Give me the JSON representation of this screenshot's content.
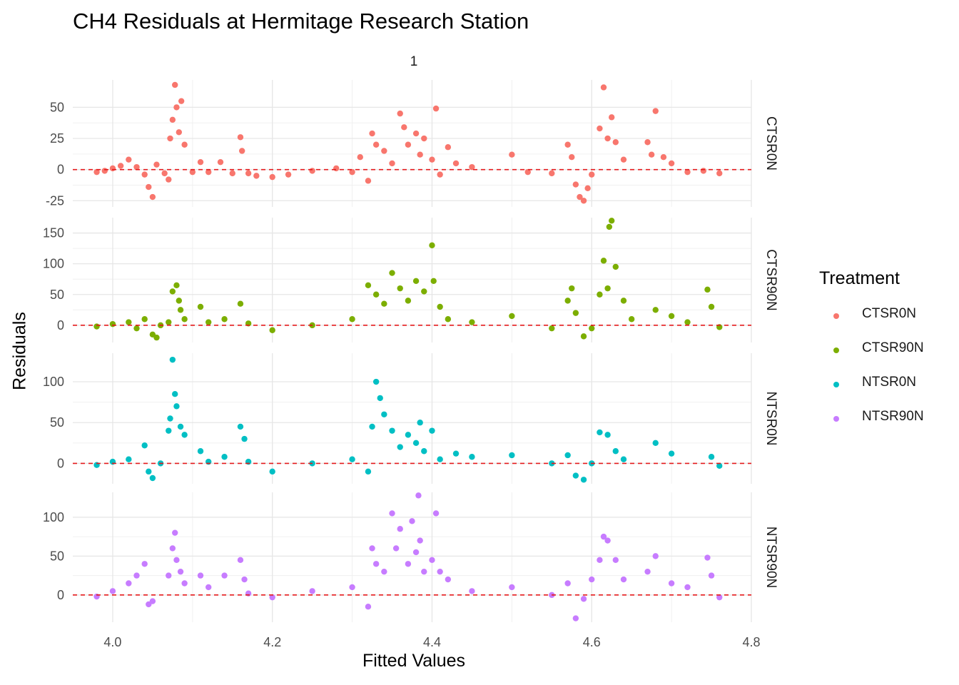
{
  "chart_data": {
    "type": "scatter",
    "title": "CH4 Residuals at Hermitage Research Station",
    "strip_label": "1",
    "xlabel": "Fitted Values",
    "ylabel": "Residuals",
    "xlim": [
      3.95,
      4.8
    ],
    "x_ticks": [
      4.0,
      4.2,
      4.4,
      4.6,
      4.8
    ],
    "x_tick_labels": [
      "4.0",
      "4.2",
      "4.4",
      "4.6",
      "4.8"
    ],
    "reference_line": {
      "y": 0,
      "style": "dashed",
      "color": "#e41a1c"
    },
    "grid": true,
    "legend": {
      "title": "Treatment",
      "position": "right"
    },
    "panels": [
      {
        "name": "CTSR0N",
        "color": "#F8766D",
        "ylim": [
          -30,
          72
        ],
        "y_ticks": [
          -25,
          0,
          25,
          50
        ],
        "points": [
          [
            3.98,
            -2
          ],
          [
            3.99,
            -1
          ],
          [
            4.0,
            1
          ],
          [
            4.01,
            3
          ],
          [
            4.02,
            8
          ],
          [
            4.03,
            2
          ],
          [
            4.04,
            -4
          ],
          [
            4.045,
            -14
          ],
          [
            4.05,
            -22
          ],
          [
            4.055,
            4
          ],
          [
            4.065,
            -3
          ],
          [
            4.07,
            -8
          ],
          [
            4.072,
            25
          ],
          [
            4.075,
            40
          ],
          [
            4.078,
            68
          ],
          [
            4.08,
            50
          ],
          [
            4.083,
            30
          ],
          [
            4.086,
            55
          ],
          [
            4.09,
            20
          ],
          [
            4.1,
            -2
          ],
          [
            4.11,
            6
          ],
          [
            4.12,
            -2
          ],
          [
            4.135,
            6
          ],
          [
            4.15,
            -3
          ],
          [
            4.16,
            26
          ],
          [
            4.162,
            15
          ],
          [
            4.17,
            -3
          ],
          [
            4.18,
            -5
          ],
          [
            4.2,
            -6
          ],
          [
            4.22,
            -4
          ],
          [
            4.25,
            -1
          ],
          [
            4.28,
            1
          ],
          [
            4.3,
            -2
          ],
          [
            4.31,
            10
          ],
          [
            4.32,
            -9
          ],
          [
            4.325,
            29
          ],
          [
            4.33,
            20
          ],
          [
            4.34,
            15
          ],
          [
            4.35,
            5
          ],
          [
            4.36,
            45
          ],
          [
            4.365,
            34
          ],
          [
            4.37,
            20
          ],
          [
            4.38,
            29
          ],
          [
            4.385,
            12
          ],
          [
            4.39,
            25
          ],
          [
            4.4,
            8
          ],
          [
            4.405,
            49
          ],
          [
            4.41,
            -4
          ],
          [
            4.42,
            18
          ],
          [
            4.43,
            5
          ],
          [
            4.45,
            2
          ],
          [
            4.5,
            12
          ],
          [
            4.52,
            -2
          ],
          [
            4.55,
            -3
          ],
          [
            4.57,
            20
          ],
          [
            4.575,
            10
          ],
          [
            4.58,
            -12
          ],
          [
            4.585,
            -22
          ],
          [
            4.59,
            -25
          ],
          [
            4.595,
            -15
          ],
          [
            4.6,
            -4
          ],
          [
            4.61,
            33
          ],
          [
            4.615,
            66
          ],
          [
            4.62,
            25
          ],
          [
            4.625,
            42
          ],
          [
            4.63,
            22
          ],
          [
            4.64,
            8
          ],
          [
            4.67,
            22
          ],
          [
            4.675,
            12
          ],
          [
            4.68,
            47
          ],
          [
            4.69,
            10
          ],
          [
            4.7,
            5
          ],
          [
            4.72,
            -2
          ],
          [
            4.74,
            -1
          ],
          [
            4.76,
            -3
          ]
        ]
      },
      {
        "name": "CTSR90N",
        "color": "#7CAE00",
        "ylim": [
          -28,
          175
        ],
        "y_ticks": [
          0,
          50,
          100,
          150
        ],
        "points": [
          [
            3.98,
            -2
          ],
          [
            4.0,
            2
          ],
          [
            4.02,
            5
          ],
          [
            4.03,
            -5
          ],
          [
            4.04,
            10
          ],
          [
            4.05,
            -15
          ],
          [
            4.055,
            -20
          ],
          [
            4.06,
            0
          ],
          [
            4.07,
            5
          ],
          [
            4.075,
            55
          ],
          [
            4.08,
            65
          ],
          [
            4.083,
            40
          ],
          [
            4.085,
            25
          ],
          [
            4.09,
            10
          ],
          [
            4.11,
            30
          ],
          [
            4.12,
            5
          ],
          [
            4.14,
            10
          ],
          [
            4.16,
            35
          ],
          [
            4.17,
            3
          ],
          [
            4.2,
            -8
          ],
          [
            4.25,
            0
          ],
          [
            4.3,
            10
          ],
          [
            4.32,
            65
          ],
          [
            4.33,
            50
          ],
          [
            4.34,
            35
          ],
          [
            4.35,
            85
          ],
          [
            4.36,
            60
          ],
          [
            4.37,
            40
          ],
          [
            4.38,
            72
          ],
          [
            4.39,
            55
          ],
          [
            4.4,
            130
          ],
          [
            4.402,
            72
          ],
          [
            4.41,
            30
          ],
          [
            4.42,
            10
          ],
          [
            4.45,
            5
          ],
          [
            4.5,
            15
          ],
          [
            4.55,
            -5
          ],
          [
            4.57,
            40
          ],
          [
            4.575,
            60
          ],
          [
            4.58,
            20
          ],
          [
            4.59,
            -18
          ],
          [
            4.6,
            -5
          ],
          [
            4.61,
            50
          ],
          [
            4.615,
            105
          ],
          [
            4.62,
            60
          ],
          [
            4.622,
            160
          ],
          [
            4.625,
            170
          ],
          [
            4.63,
            95
          ],
          [
            4.64,
            40
          ],
          [
            4.65,
            10
          ],
          [
            4.68,
            25
          ],
          [
            4.7,
            15
          ],
          [
            4.72,
            5
          ],
          [
            4.745,
            58
          ],
          [
            4.75,
            30
          ],
          [
            4.76,
            -3
          ]
        ]
      },
      {
        "name": "NTSR0N",
        "color": "#00BFC4",
        "ylim": [
          -25,
          135
        ],
        "y_ticks": [
          0,
          50,
          100
        ],
        "points": [
          [
            3.98,
            -2
          ],
          [
            4.0,
            2
          ],
          [
            4.02,
            5
          ],
          [
            4.04,
            22
          ],
          [
            4.045,
            -10
          ],
          [
            4.05,
            -18
          ],
          [
            4.06,
            0
          ],
          [
            4.07,
            40
          ],
          [
            4.072,
            55
          ],
          [
            4.075,
            127
          ],
          [
            4.078,
            85
          ],
          [
            4.08,
            70
          ],
          [
            4.085,
            45
          ],
          [
            4.09,
            35
          ],
          [
            4.11,
            15
          ],
          [
            4.12,
            2
          ],
          [
            4.14,
            8
          ],
          [
            4.16,
            45
          ],
          [
            4.165,
            30
          ],
          [
            4.17,
            2
          ],
          [
            4.2,
            -10
          ],
          [
            4.25,
            0
          ],
          [
            4.3,
            5
          ],
          [
            4.32,
            -10
          ],
          [
            4.325,
            45
          ],
          [
            4.33,
            100
          ],
          [
            4.335,
            80
          ],
          [
            4.34,
            60
          ],
          [
            4.35,
            40
          ],
          [
            4.36,
            20
          ],
          [
            4.37,
            35
          ],
          [
            4.38,
            25
          ],
          [
            4.385,
            50
          ],
          [
            4.39,
            15
          ],
          [
            4.4,
            40
          ],
          [
            4.41,
            5
          ],
          [
            4.43,
            12
          ],
          [
            4.45,
            8
          ],
          [
            4.5,
            10
          ],
          [
            4.55,
            0
          ],
          [
            4.57,
            10
          ],
          [
            4.58,
            -15
          ],
          [
            4.59,
            -20
          ],
          [
            4.6,
            0
          ],
          [
            4.61,
            38
          ],
          [
            4.62,
            35
          ],
          [
            4.63,
            15
          ],
          [
            4.64,
            5
          ],
          [
            4.68,
            25
          ],
          [
            4.7,
            12
          ],
          [
            4.75,
            8
          ],
          [
            4.76,
            -3
          ]
        ]
      },
      {
        "name": "NTSR90N",
        "color": "#C77CFF",
        "ylim": [
          -35,
          132
        ],
        "y_ticks": [
          0,
          50,
          100
        ],
        "points": [
          [
            3.98,
            -2
          ],
          [
            4.0,
            5
          ],
          [
            4.02,
            15
          ],
          [
            4.03,
            25
          ],
          [
            4.04,
            40
          ],
          [
            4.045,
            -12
          ],
          [
            4.05,
            -8
          ],
          [
            4.07,
            25
          ],
          [
            4.075,
            60
          ],
          [
            4.078,
            80
          ],
          [
            4.08,
            45
          ],
          [
            4.085,
            30
          ],
          [
            4.09,
            15
          ],
          [
            4.11,
            25
          ],
          [
            4.12,
            10
          ],
          [
            4.14,
            25
          ],
          [
            4.16,
            45
          ],
          [
            4.165,
            20
          ],
          [
            4.17,
            2
          ],
          [
            4.2,
            -3
          ],
          [
            4.25,
            5
          ],
          [
            4.3,
            10
          ],
          [
            4.32,
            -15
          ],
          [
            4.325,
            60
          ],
          [
            4.33,
            40
          ],
          [
            4.34,
            30
          ],
          [
            4.35,
            105
          ],
          [
            4.355,
            60
          ],
          [
            4.36,
            85
          ],
          [
            4.37,
            40
          ],
          [
            4.375,
            95
          ],
          [
            4.38,
            55
          ],
          [
            4.383,
            128
          ],
          [
            4.385,
            70
          ],
          [
            4.39,
            30
          ],
          [
            4.4,
            45
          ],
          [
            4.405,
            105
          ],
          [
            4.41,
            30
          ],
          [
            4.42,
            20
          ],
          [
            4.45,
            5
          ],
          [
            4.5,
            10
          ],
          [
            4.55,
            0
          ],
          [
            4.57,
            15
          ],
          [
            4.58,
            -30
          ],
          [
            4.59,
            -5
          ],
          [
            4.6,
            20
          ],
          [
            4.61,
            45
          ],
          [
            4.615,
            75
          ],
          [
            4.62,
            70
          ],
          [
            4.63,
            45
          ],
          [
            4.64,
            20
          ],
          [
            4.67,
            30
          ],
          [
            4.68,
            50
          ],
          [
            4.7,
            15
          ],
          [
            4.72,
            10
          ],
          [
            4.745,
            48
          ],
          [
            4.75,
            25
          ],
          [
            4.76,
            -3
          ]
        ]
      }
    ]
  }
}
